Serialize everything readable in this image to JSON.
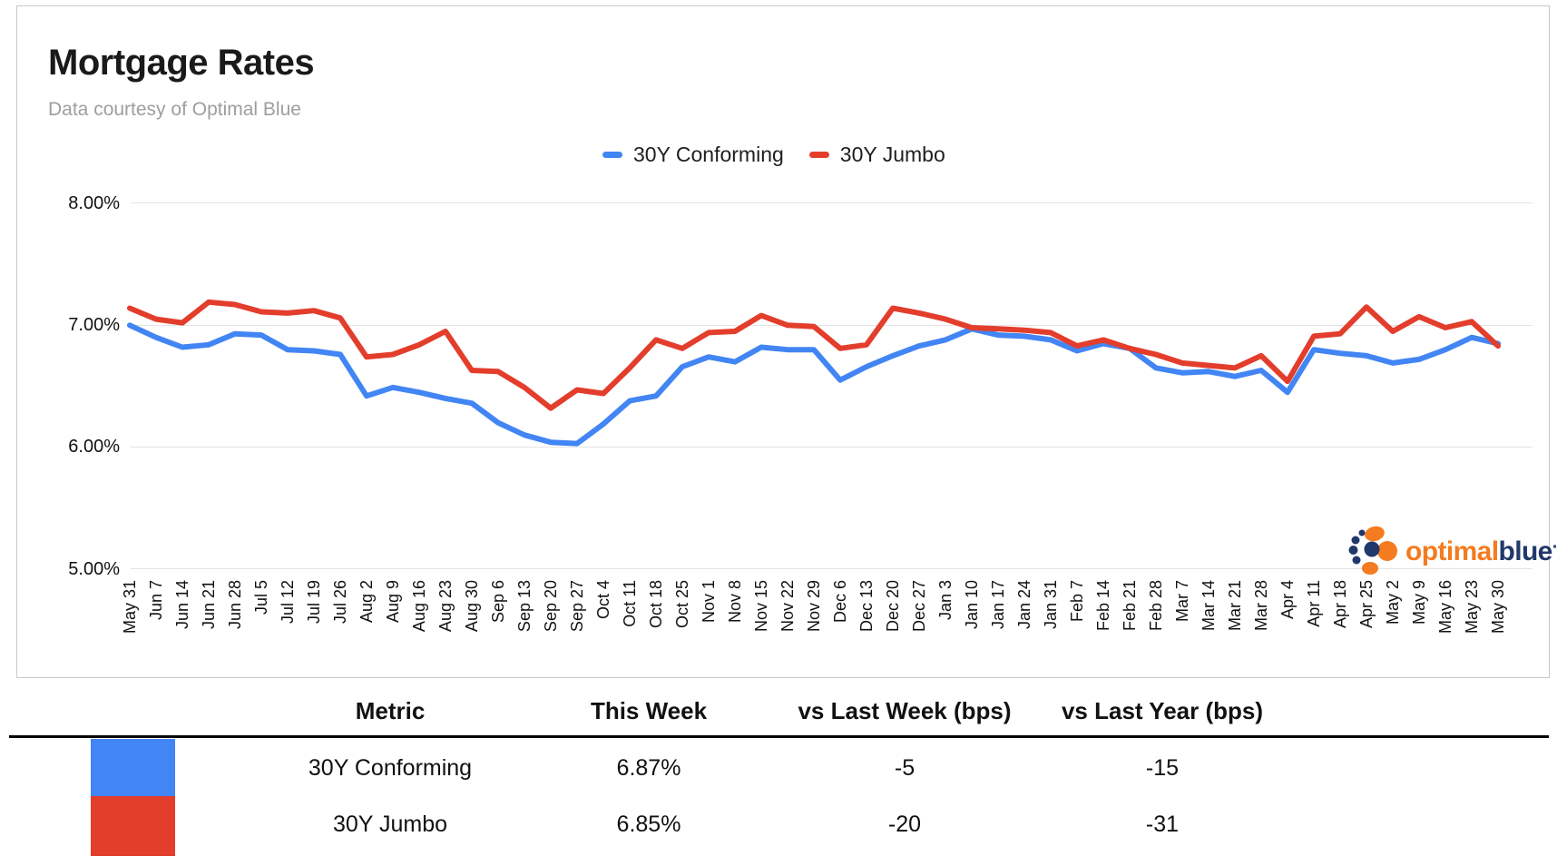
{
  "header": {
    "title": "Mortgage Rates",
    "subtitle": "Data courtesy of Optimal Blue"
  },
  "legend": {
    "items": [
      {
        "label": "30Y Conforming",
        "color": "#4285F4"
      },
      {
        "label": "30Y Jumbo",
        "color": "#E33D2C"
      }
    ]
  },
  "logo": {
    "word1": "optimal",
    "word2": "blue",
    "trademark": "·",
    "orange": "#F47B20",
    "navy": "#21386B"
  },
  "chart_data": {
    "type": "line",
    "title": "Mortgage Rates",
    "xlabel": "",
    "ylabel": "",
    "ylim": [
      5.0,
      8.0
    ],
    "grid": true,
    "legend_position": "top",
    "y_ticks": [
      {
        "value": 8.0,
        "label": "8.00%"
      },
      {
        "value": 7.0,
        "label": "7.00%"
      },
      {
        "value": 6.0,
        "label": "6.00%"
      },
      {
        "value": 5.0,
        "label": "5.00%"
      }
    ],
    "x": [
      "May 31",
      "Jun 7",
      "Jun 14",
      "Jun 21",
      "Jun 28",
      "Jul 5",
      "Jul 12",
      "Jul 19",
      "Jul 26",
      "Aug 2",
      "Aug 9",
      "Aug 16",
      "Aug 23",
      "Aug 30",
      "Sep 6",
      "Sep 13",
      "Sep 20",
      "Sep 27",
      "Oct 4",
      "Oct 11",
      "Oct 18",
      "Oct 25",
      "Nov 1",
      "Nov 8",
      "Nov 15",
      "Nov 22",
      "Nov 29",
      "Dec 6",
      "Dec 13",
      "Dec 20",
      "Dec 27",
      "Jan 3",
      "Jan 10",
      "Jan 17",
      "Jan 24",
      "Jan 31",
      "Feb 7",
      "Feb 14",
      "Feb 21",
      "Feb 28",
      "Mar 7",
      "Mar 14",
      "Mar 21",
      "Mar 28",
      "Apr 4",
      "Apr 11",
      "Apr 18",
      "Apr 25",
      "May 2",
      "May 9",
      "May 16",
      "May 23",
      "May 30"
    ],
    "series": [
      {
        "name": "30Y Conforming",
        "color": "#4285F4",
        "values": [
          7.02,
          6.92,
          6.84,
          6.86,
          6.95,
          6.94,
          6.82,
          6.81,
          6.78,
          6.44,
          6.51,
          6.47,
          6.42,
          6.38,
          6.22,
          6.12,
          6.06,
          6.05,
          6.21,
          6.4,
          6.44,
          6.68,
          6.76,
          6.72,
          6.84,
          6.82,
          6.82,
          6.57,
          6.68,
          6.77,
          6.85,
          6.9,
          6.99,
          6.94,
          6.93,
          6.9,
          6.81,
          6.87,
          6.83,
          6.67,
          6.63,
          6.64,
          6.6,
          6.65,
          6.47,
          6.82,
          6.79,
          6.77,
          6.71,
          6.74,
          6.82,
          6.92,
          6.87
        ]
      },
      {
        "name": "30Y Jumbo",
        "color": "#E33D2C",
        "values": [
          7.16,
          7.07,
          7.04,
          7.21,
          7.19,
          7.13,
          7.12,
          7.14,
          7.08,
          6.76,
          6.78,
          6.86,
          6.97,
          6.65,
          6.64,
          6.51,
          6.34,
          6.49,
          6.46,
          6.67,
          6.9,
          6.83,
          6.96,
          6.97,
          7.1,
          7.02,
          7.01,
          6.83,
          6.86,
          7.16,
          7.12,
          7.07,
          7.0,
          6.99,
          6.98,
          6.96,
          6.85,
          6.9,
          6.83,
          6.78,
          6.71,
          6.69,
          6.67,
          6.77,
          6.56,
          6.93,
          6.95,
          7.17,
          6.97,
          7.09,
          7.0,
          7.05,
          6.85
        ]
      }
    ]
  },
  "table": {
    "headers": [
      "Metric",
      "This Week",
      "vs Last Week (bps)",
      "vs Last Year (bps)"
    ],
    "rows": [
      {
        "swatch_color": "#4285F4",
        "cells": [
          "30Y Conforming",
          "6.87%",
          "-5",
          "-15"
        ]
      },
      {
        "swatch_color": "#E33D2C",
        "cells": [
          "30Y Jumbo",
          "6.85%",
          "-20",
          "-31"
        ]
      }
    ]
  }
}
